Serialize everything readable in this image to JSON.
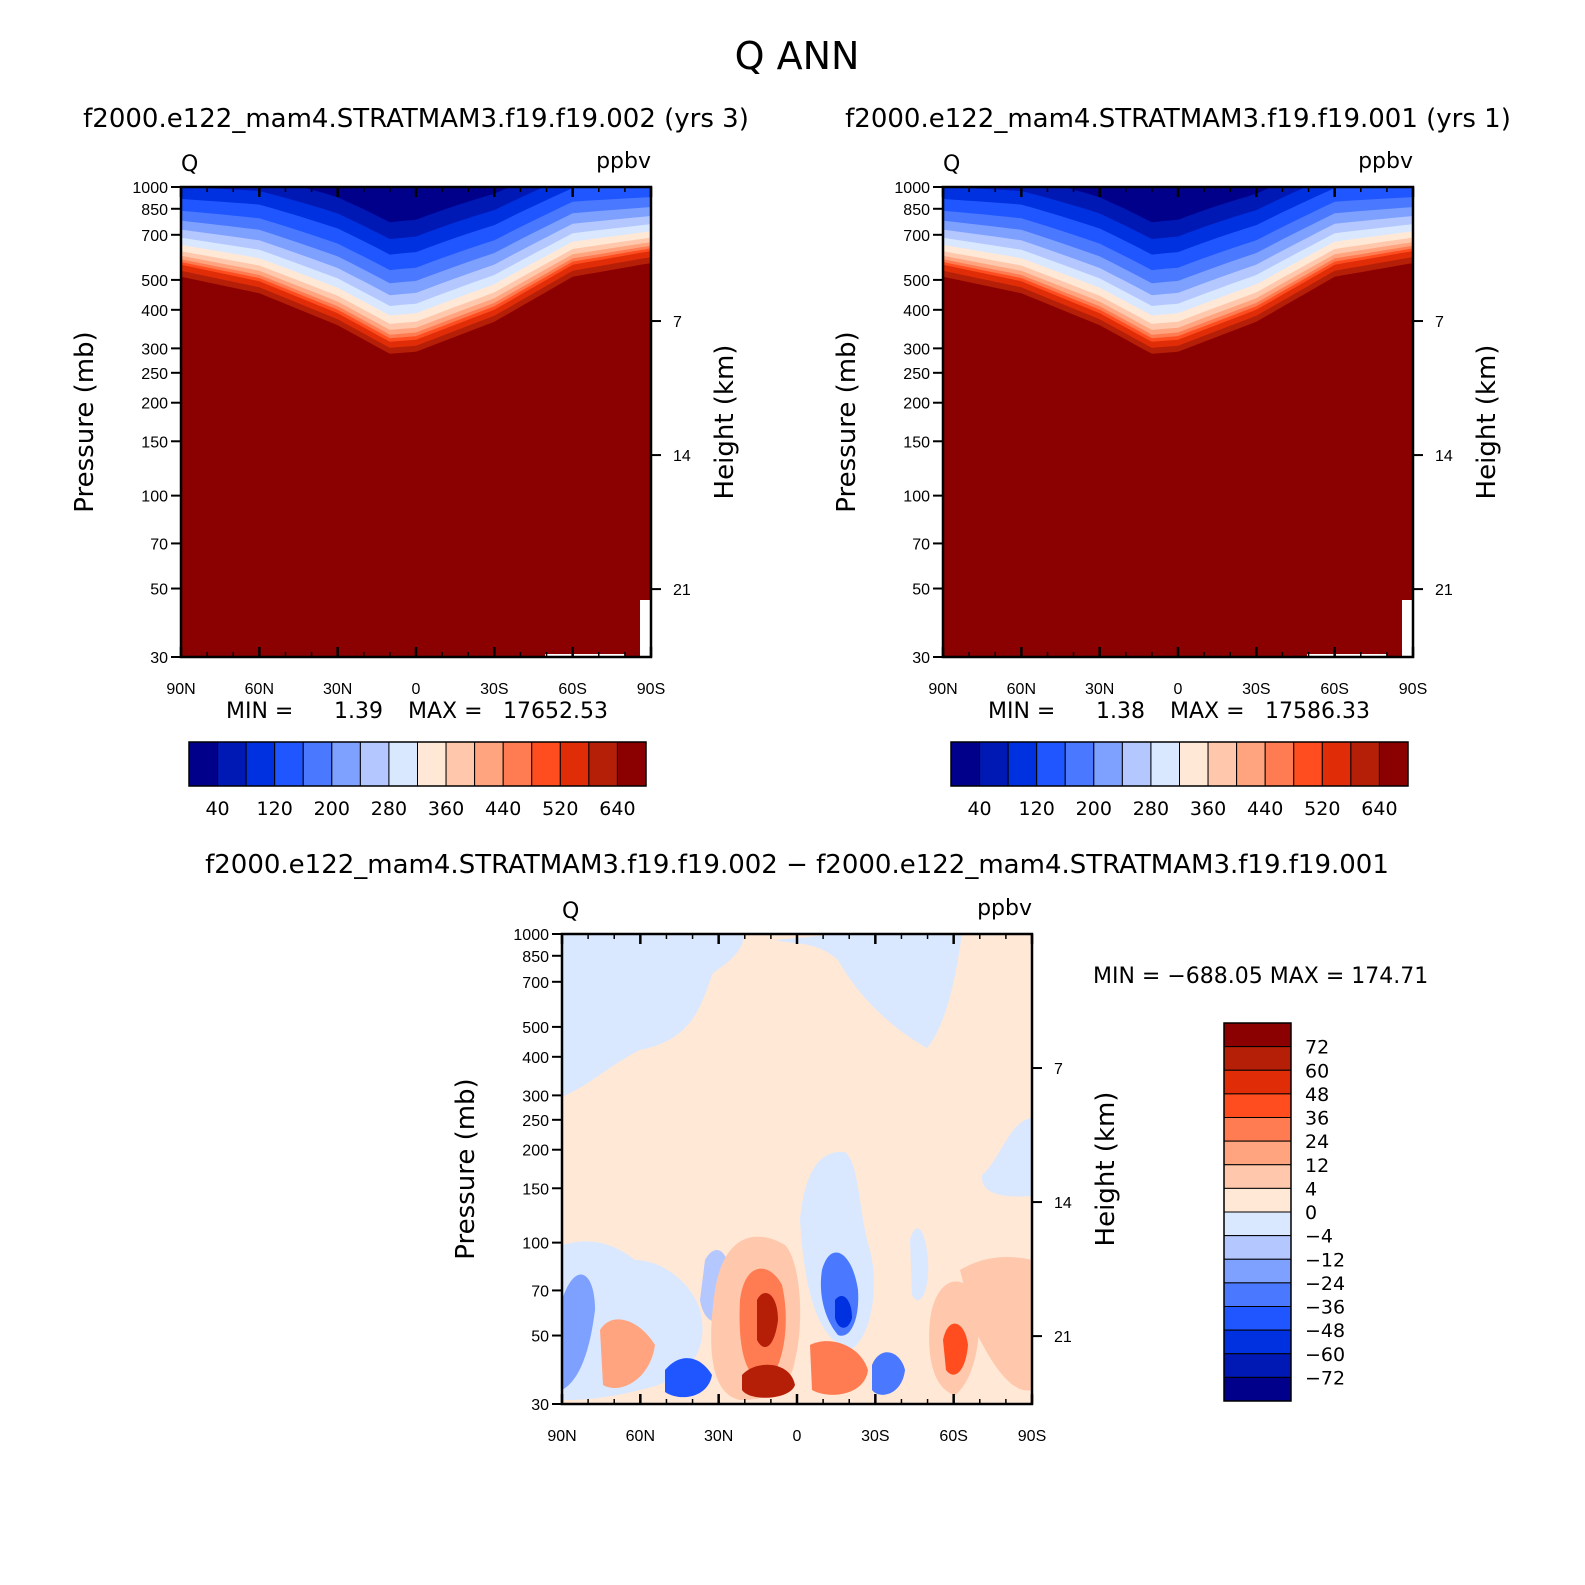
{
  "main_title": "Q  ANN",
  "panels": {
    "top_left": {
      "title": "f2000.e122_mam4.STRATMAM3.f19.f19.002  (yrs  3)",
      "var": "Q",
      "units": "ppbv",
      "ylabel": "Pressure  (mb)",
      "y2label": "Height  (km)",
      "stats": {
        "min_label": "MIN  =",
        "min_value": "1.39",
        "max_label": "MAX  =",
        "max_value": "17652.53"
      }
    },
    "top_right": {
      "title": "f2000.e122_mam4.STRATMAM3.f19.f19.001  (yrs  1)",
      "var": "Q",
      "units": "ppbv",
      "ylabel": "Pressure  (mb)",
      "y2label": "Height  (km)",
      "stats": {
        "min_label": "MIN  =",
        "min_value": "1.38",
        "max_label": "MAX  =",
        "max_value": "17586.33"
      }
    },
    "bottom": {
      "title": "f2000.e122_mam4.STRATMAM3.f19.f19.002  −  f2000.e122_mam4.STRATMAM3.f19.f19.001",
      "var": "Q",
      "units": "ppbv",
      "ylabel": "Pressure  (mb)",
      "y2label": "Height  (km)",
      "stats": "MIN  =  −688.05    MAX  =  174.71"
    }
  },
  "chart_data": [
    {
      "type": "heatmap",
      "name": "top_left",
      "x_ticks": [
        "90N",
        "60N",
        "30N",
        "0",
        "30S",
        "60S",
        "90S"
      ],
      "x_values": [
        90,
        60,
        30,
        0,
        -30,
        -60,
        -90
      ],
      "y_ticks": [
        30,
        50,
        70,
        100,
        150,
        200,
        250,
        300,
        400,
        500,
        700,
        850,
        1000
      ],
      "y_scale": "log",
      "ylim": [
        1000,
        30
      ],
      "y2_ticks": [
        7,
        14,
        21
      ],
      "tropopause_pressure_mb": [
        [
          90,
          560
        ],
        [
          60,
          495
        ],
        [
          30,
          390
        ],
        [
          10,
          315
        ],
        [
          0,
          320
        ],
        [
          -30,
          400
        ],
        [
          -60,
          560
        ],
        [
          -90,
          620
        ]
      ],
      "min": 1.39,
      "max": 17652.53,
      "colorbar_levels": [
        40,
        120,
        200,
        280,
        360,
        440,
        520,
        640
      ]
    },
    {
      "type": "heatmap",
      "name": "top_right",
      "x_ticks": [
        "90N",
        "60N",
        "30N",
        "0",
        "30S",
        "60S",
        "90S"
      ],
      "x_values": [
        90,
        60,
        30,
        0,
        -30,
        -60,
        -90
      ],
      "y_ticks": [
        30,
        50,
        70,
        100,
        150,
        200,
        250,
        300,
        400,
        500,
        700,
        850,
        1000
      ],
      "y_scale": "log",
      "ylim": [
        1000,
        30
      ],
      "y2_ticks": [
        7,
        14,
        21
      ],
      "tropopause_pressure_mb": [
        [
          90,
          560
        ],
        [
          60,
          495
        ],
        [
          30,
          390
        ],
        [
          10,
          315
        ],
        [
          0,
          320
        ],
        [
          -30,
          400
        ],
        [
          -60,
          560
        ],
        [
          -90,
          620
        ]
      ],
      "min": 1.38,
      "max": 17586.33,
      "colorbar_levels": [
        40,
        120,
        200,
        280,
        360,
        440,
        520,
        640
      ]
    },
    {
      "type": "heatmap",
      "name": "difference",
      "x_ticks": [
        "90N",
        "60N",
        "30N",
        "0",
        "30S",
        "60S",
        "90S"
      ],
      "x_values": [
        90,
        60,
        30,
        0,
        -30,
        -60,
        -90
      ],
      "y_ticks": [
        30,
        50,
        70,
        100,
        150,
        200,
        250,
        300,
        400,
        500,
        700,
        850,
        1000
      ],
      "y_scale": "log",
      "ylim": [
        1000,
        30
      ],
      "y2_ticks": [
        7,
        14,
        21
      ],
      "min": -688.05,
      "max": 174.71,
      "colorbar_levels": [
        "72",
        "60",
        "48",
        "36",
        "24",
        "12",
        "4",
        "0",
        "−4",
        "−12",
        "−24",
        "−36",
        "−48",
        "−60",
        "−72"
      ]
    }
  ],
  "colors": {
    "sequential": [
      "#00008b",
      "#0018b4",
      "#0031e0",
      "#1f56ff",
      "#4a78ff",
      "#7ea0ff",
      "#b4c8ff",
      "#d9e8ff",
      "#ffe8d6",
      "#ffc8ac",
      "#ffa47e",
      "#ff7b52",
      "#ff4d20",
      "#e02d08",
      "#b51f08",
      "#8b0000"
    ],
    "diverging": [
      "#8b0000",
      "#b51f08",
      "#e02d08",
      "#ff4d20",
      "#ff7b52",
      "#ffa47e",
      "#ffc8ac",
      "#ffe8d6",
      "#d9e8ff",
      "#b4c8ff",
      "#7ea0ff",
      "#4a78ff",
      "#1f56ff",
      "#0031e0",
      "#0018b4",
      "#00008b"
    ]
  }
}
